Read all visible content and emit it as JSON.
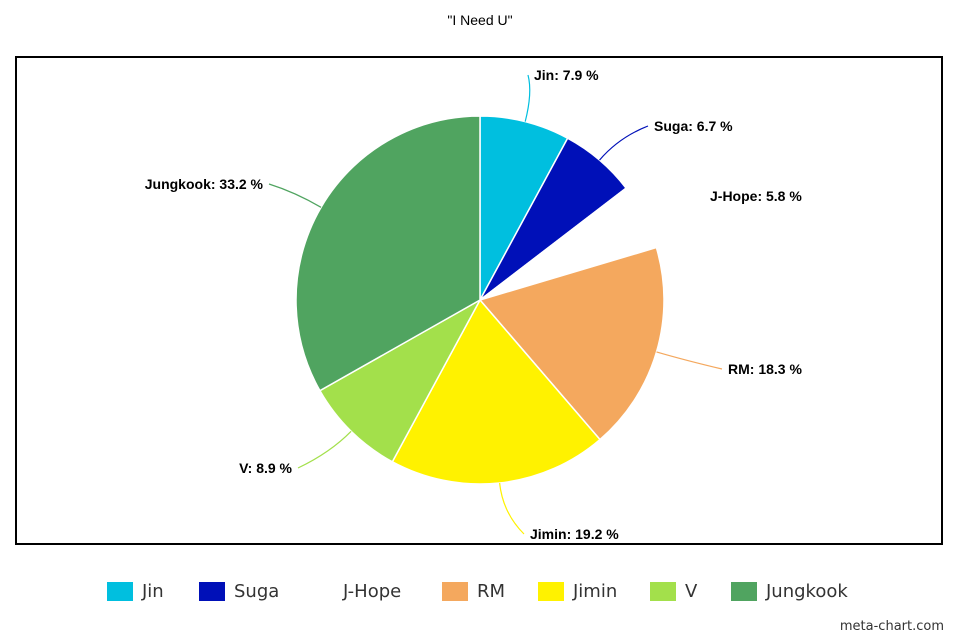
{
  "chart_data": {
    "type": "pie",
    "title": "\"I Need U\"",
    "unit": "%",
    "legend_position": "bottom",
    "slices": [
      {
        "name": "Jin",
        "value": 7.9,
        "label": "Jin: 7.9 %",
        "color": "#00bfdf"
      },
      {
        "name": "Suga",
        "value": 6.7,
        "label": "Suga: 6.7 %",
        "color": "#0010b8"
      },
      {
        "name": "J-Hope",
        "value": 5.8,
        "label": "J-Hope: 5.8 %",
        "color": "#ffffff"
      },
      {
        "name": "RM",
        "value": 18.3,
        "label": "RM: 18.3 %",
        "color": "#f4a85e"
      },
      {
        "name": "Jimin",
        "value": 19.2,
        "label": "Jimin: 19.2 %",
        "color": "#fff200"
      },
      {
        "name": "V",
        "value": 8.9,
        "label": "V: 8.9 %",
        "color": "#a3e04b"
      },
      {
        "name": "Jungkook",
        "value": 33.2,
        "label": "Jungkook: 33.2 %",
        "color": "#50a460"
      }
    ]
  },
  "watermark": "meta-chart.com"
}
